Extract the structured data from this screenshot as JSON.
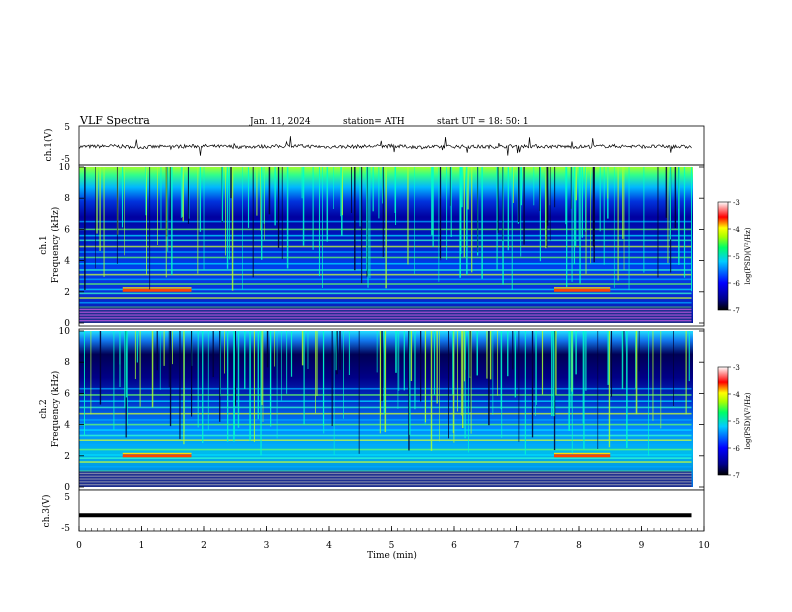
{
  "header": {
    "title": "VLF  Spectra",
    "date": "Jan. 11, 2024",
    "station": "station= ATH",
    "start": "start  UT  =    18: 50: 1"
  },
  "chart_data": [
    {
      "type": "line",
      "id": "ch1_waveform",
      "ylabel": "ch.1(V)",
      "ylim": [
        -5,
        5
      ],
      "yticks": [
        "5",
        "-5"
      ],
      "x": [
        0,
        0.5,
        1,
        1.5,
        2,
        2.5,
        3,
        3.5,
        4,
        4.5,
        5,
        5.5,
        6,
        6.5,
        7,
        7.5,
        8,
        8.5,
        9,
        9.8
      ],
      "values": [
        -0.5,
        -0.3,
        -0.6,
        -0.4,
        -0.3,
        -0.5,
        -0.4,
        -0.3,
        -0.5,
        -0.4,
        -0.3,
        -0.6,
        -0.4,
        -0.5,
        -0.3,
        -0.4,
        -0.5,
        -0.3,
        -0.4,
        -0.5
      ]
    },
    {
      "type": "heatmap",
      "id": "ch1_spectrogram",
      "ylabel": "ch.1",
      "ylabel2": "Frequency  (kHz)",
      "xlim": [
        0,
        9.8
      ],
      "ylim": [
        0,
        10
      ],
      "yticks": [
        "0",
        "2",
        "4",
        "6",
        "8",
        "10"
      ],
      "bands_khz": [
        0.5,
        0.8,
        1.0,
        1.3,
        1.6,
        1.9,
        2.15,
        2.5,
        2.8,
        3.1,
        3.4,
        3.8,
        4.2,
        4.55,
        4.9,
        5.3,
        5.6,
        6.0,
        6.5
      ],
      "highlight_khz": 2.1,
      "highlight_spans_min": [
        [
          0.7,
          1.8
        ],
        [
          7.6,
          8.5
        ]
      ],
      "colorbar": {
        "label": "log(PSD)(V²/Hz)",
        "range": [
          -7,
          -3
        ],
        "ticks": [
          "-3",
          "-4",
          "-5",
          "-6",
          "-7"
        ]
      }
    },
    {
      "type": "heatmap",
      "id": "ch2_spectrogram",
      "ylabel": "ch.2",
      "ylabel2": "Frequency  (kHz)",
      "xlim": [
        0,
        9.8
      ],
      "ylim": [
        0,
        10
      ],
      "yticks": [
        "0",
        "2",
        "4",
        "6",
        "8",
        "10"
      ],
      "bands_khz": [
        0.4,
        0.7,
        1.0,
        1.3,
        1.6,
        1.85,
        2.05,
        2.4,
        2.7,
        3.0,
        3.3,
        3.65,
        4.0,
        4.3,
        4.7,
        5.1,
        5.5,
        5.9,
        6.3
      ],
      "highlight_khz": 2.0,
      "highlight_spans_min": [
        [
          0.7,
          1.8
        ],
        [
          7.6,
          8.5
        ]
      ],
      "colorbar": {
        "label": "log(PSD)(V²/Hz)",
        "range": [
          -7,
          -3
        ],
        "ticks": [
          "-3",
          "-4",
          "-5",
          "-6",
          "-7"
        ]
      }
    },
    {
      "type": "line",
      "id": "ch3_waveform",
      "ylabel": "ch.3(V)",
      "ylim": [
        -5,
        5
      ],
      "yticks": [
        "5",
        "-5"
      ],
      "x": [
        0,
        9.8
      ],
      "values": [
        -1.5,
        -1.5
      ]
    }
  ],
  "x_axis": {
    "label": "Time  (min)",
    "range": [
      0,
      10
    ],
    "ticks": [
      "0",
      "1",
      "2",
      "3",
      "4",
      "5",
      "6",
      "7",
      "8",
      "9",
      "10"
    ]
  },
  "colors": {
    "scale": [
      "#000000",
      "#0000ff",
      "#00ccff",
      "#00ff66",
      "#aaff00",
      "#ffff00",
      "#ff0000",
      "#ffffff"
    ]
  }
}
